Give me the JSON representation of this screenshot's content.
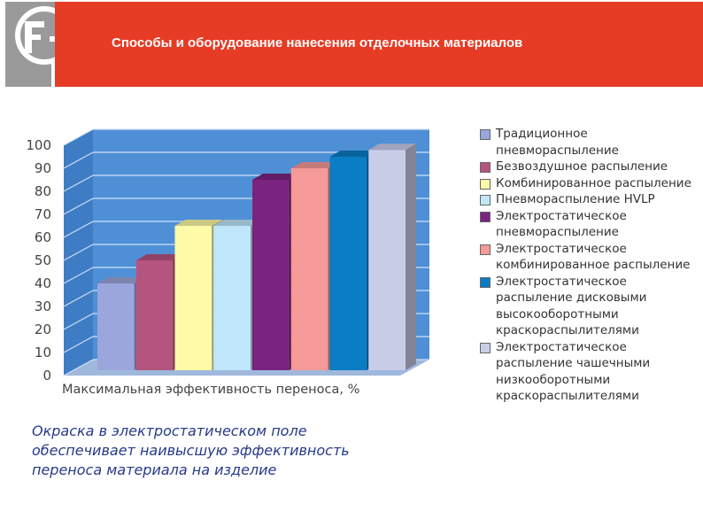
{
  "header": {
    "title": "Способы и оборудование нанесения отделочных материалов",
    "logo_icon": "fe-logo-icon"
  },
  "chart_data": {
    "type": "bar",
    "categories": [
      "Традиционное пневмораспыление",
      "Безвоздушное распыление",
      "Комбинированное распыление",
      "Пневмораспыление HVLP",
      "Электростатическое пневмораспыление",
      "Электростатическое комбинированное распыление",
      "Электростатическое распыление дисковыми высокооборотными краскораспылителями",
      "Электростатическое распыление чашечными низкооборотными краскораспылителями"
    ],
    "values": [
      40,
      50,
      65,
      65,
      85,
      90,
      95,
      98
    ],
    "colors": [
      "#9aa6dc",
      "#b5547f",
      "#fffaa8",
      "#bfe6fb",
      "#7a237f",
      "#f59a98",
      "#0a7dc4",
      "#c9cde8"
    ],
    "xlabel": "Максимальная эффективность переноса, %",
    "ylabel": "",
    "ylim": [
      0,
      100
    ],
    "yticks": [
      0,
      10,
      20,
      30,
      40,
      50,
      60,
      70,
      80,
      90,
      100
    ],
    "grid": true,
    "legend_position": "right"
  },
  "legend": [
    "Традиционное пневмораспыление",
    "Безвоздушное распыление",
    "Комбинированное распыление",
    "Пневмораспыление HVLP",
    "Электростатическое пневмораспыление",
    "Электростатическое комбинированное распыление",
    "Электростатическое распыление дисковыми высокооборотными краскораспылителями",
    "Электростатическое распыление чашечными низкооборотными краскораспылителями"
  ],
  "note": "Окраска в электростатическом поле обеспечивает наивысшую эффективность переноса материала на изделие"
}
